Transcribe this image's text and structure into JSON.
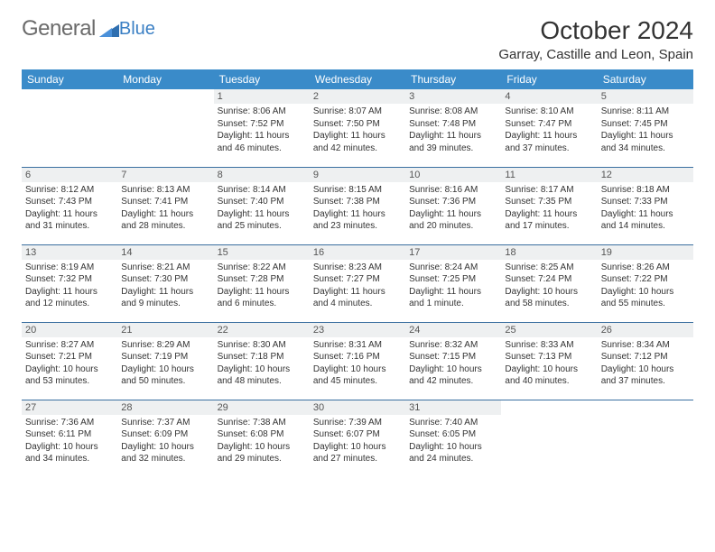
{
  "logo": {
    "text1": "General",
    "text2": "Blue",
    "color1": "#6b6b6b",
    "color2": "#3a7fc4"
  },
  "title": "October 2024",
  "location": "Garray, Castille and Leon, Spain",
  "colors": {
    "header_bg": "#3a8bc9",
    "header_fg": "#ffffff",
    "daynum_bg": "#eef0f1",
    "rule": "#3a6fa0"
  },
  "weekdays": [
    "Sunday",
    "Monday",
    "Tuesday",
    "Wednesday",
    "Thursday",
    "Friday",
    "Saturday"
  ],
  "weeks": [
    [
      null,
      null,
      {
        "n": "1",
        "sr": "8:06 AM",
        "ss": "7:52 PM",
        "dl": "11 hours and 46 minutes."
      },
      {
        "n": "2",
        "sr": "8:07 AM",
        "ss": "7:50 PM",
        "dl": "11 hours and 42 minutes."
      },
      {
        "n": "3",
        "sr": "8:08 AM",
        "ss": "7:48 PM",
        "dl": "11 hours and 39 minutes."
      },
      {
        "n": "4",
        "sr": "8:10 AM",
        "ss": "7:47 PM",
        "dl": "11 hours and 37 minutes."
      },
      {
        "n": "5",
        "sr": "8:11 AM",
        "ss": "7:45 PM",
        "dl": "11 hours and 34 minutes."
      }
    ],
    [
      {
        "n": "6",
        "sr": "8:12 AM",
        "ss": "7:43 PM",
        "dl": "11 hours and 31 minutes."
      },
      {
        "n": "7",
        "sr": "8:13 AM",
        "ss": "7:41 PM",
        "dl": "11 hours and 28 minutes."
      },
      {
        "n": "8",
        "sr": "8:14 AM",
        "ss": "7:40 PM",
        "dl": "11 hours and 25 minutes."
      },
      {
        "n": "9",
        "sr": "8:15 AM",
        "ss": "7:38 PM",
        "dl": "11 hours and 23 minutes."
      },
      {
        "n": "10",
        "sr": "8:16 AM",
        "ss": "7:36 PM",
        "dl": "11 hours and 20 minutes."
      },
      {
        "n": "11",
        "sr": "8:17 AM",
        "ss": "7:35 PM",
        "dl": "11 hours and 17 minutes."
      },
      {
        "n": "12",
        "sr": "8:18 AM",
        "ss": "7:33 PM",
        "dl": "11 hours and 14 minutes."
      }
    ],
    [
      {
        "n": "13",
        "sr": "8:19 AM",
        "ss": "7:32 PM",
        "dl": "11 hours and 12 minutes."
      },
      {
        "n": "14",
        "sr": "8:21 AM",
        "ss": "7:30 PM",
        "dl": "11 hours and 9 minutes."
      },
      {
        "n": "15",
        "sr": "8:22 AM",
        "ss": "7:28 PM",
        "dl": "11 hours and 6 minutes."
      },
      {
        "n": "16",
        "sr": "8:23 AM",
        "ss": "7:27 PM",
        "dl": "11 hours and 4 minutes."
      },
      {
        "n": "17",
        "sr": "8:24 AM",
        "ss": "7:25 PM",
        "dl": "11 hours and 1 minute."
      },
      {
        "n": "18",
        "sr": "8:25 AM",
        "ss": "7:24 PM",
        "dl": "10 hours and 58 minutes."
      },
      {
        "n": "19",
        "sr": "8:26 AM",
        "ss": "7:22 PM",
        "dl": "10 hours and 55 minutes."
      }
    ],
    [
      {
        "n": "20",
        "sr": "8:27 AM",
        "ss": "7:21 PM",
        "dl": "10 hours and 53 minutes."
      },
      {
        "n": "21",
        "sr": "8:29 AM",
        "ss": "7:19 PM",
        "dl": "10 hours and 50 minutes."
      },
      {
        "n": "22",
        "sr": "8:30 AM",
        "ss": "7:18 PM",
        "dl": "10 hours and 48 minutes."
      },
      {
        "n": "23",
        "sr": "8:31 AM",
        "ss": "7:16 PM",
        "dl": "10 hours and 45 minutes."
      },
      {
        "n": "24",
        "sr": "8:32 AM",
        "ss": "7:15 PM",
        "dl": "10 hours and 42 minutes."
      },
      {
        "n": "25",
        "sr": "8:33 AM",
        "ss": "7:13 PM",
        "dl": "10 hours and 40 minutes."
      },
      {
        "n": "26",
        "sr": "8:34 AM",
        "ss": "7:12 PM",
        "dl": "10 hours and 37 minutes."
      }
    ],
    [
      {
        "n": "27",
        "sr": "7:36 AM",
        "ss": "6:11 PM",
        "dl": "10 hours and 34 minutes."
      },
      {
        "n": "28",
        "sr": "7:37 AM",
        "ss": "6:09 PM",
        "dl": "10 hours and 32 minutes."
      },
      {
        "n": "29",
        "sr": "7:38 AM",
        "ss": "6:08 PM",
        "dl": "10 hours and 29 minutes."
      },
      {
        "n": "30",
        "sr": "7:39 AM",
        "ss": "6:07 PM",
        "dl": "10 hours and 27 minutes."
      },
      {
        "n": "31",
        "sr": "7:40 AM",
        "ss": "6:05 PM",
        "dl": "10 hours and 24 minutes."
      },
      null,
      null
    ]
  ],
  "labels": {
    "sunrise": "Sunrise: ",
    "sunset": "Sunset: ",
    "daylight": "Daylight: "
  }
}
